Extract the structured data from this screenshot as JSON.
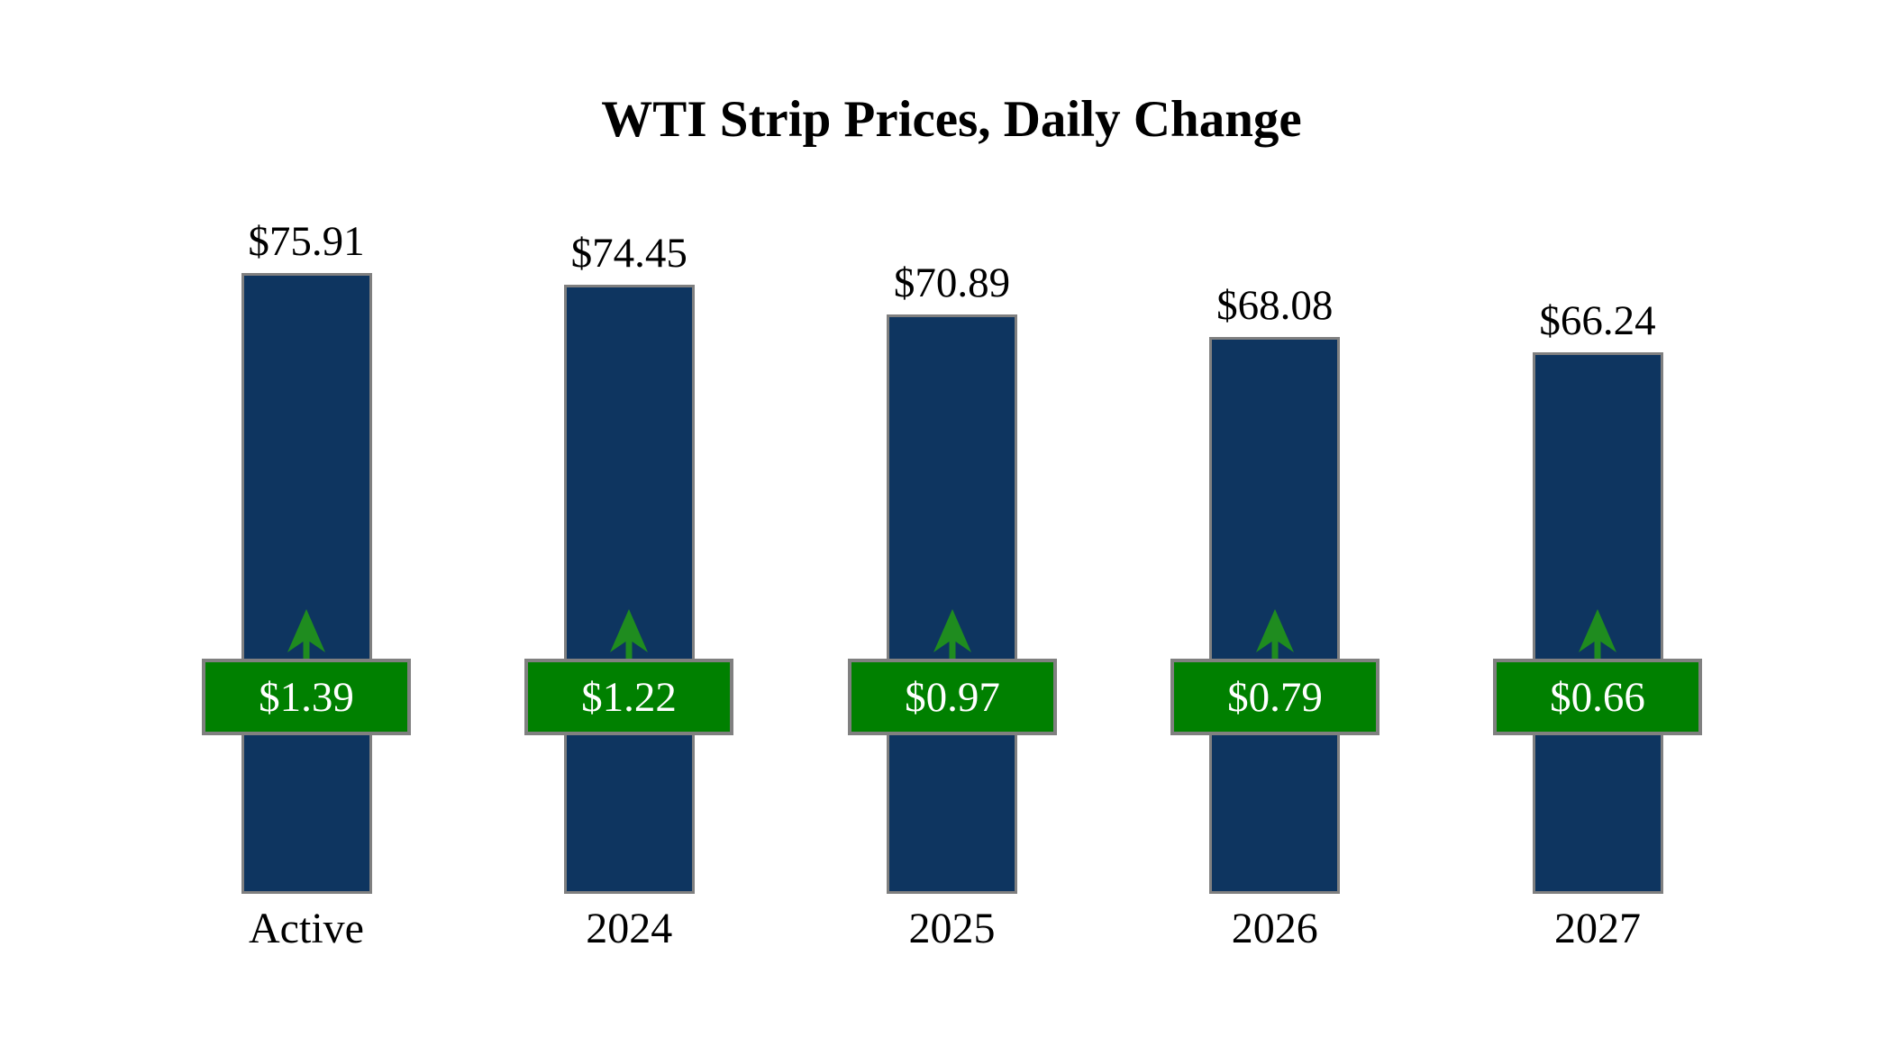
{
  "title": "WTI Strip Prices, Daily Change",
  "chart_data": {
    "type": "bar",
    "title": "WTI Strip Prices, Daily Change",
    "categories": [
      "Active",
      "2024",
      "2025",
      "2026",
      "2027"
    ],
    "series": [
      {
        "name": "strip_price",
        "values": [
          75.91,
          74.45,
          70.89,
          68.08,
          66.24
        ]
      },
      {
        "name": "daily_change",
        "values": [
          1.39,
          1.22,
          0.97,
          0.79,
          0.66
        ]
      }
    ],
    "value_labels": [
      "$75.91",
      "$74.45",
      "$70.89",
      "$68.08",
      "$66.24"
    ],
    "change_labels": [
      "$1.39",
      "$1.22",
      "$0.97",
      "$0.79",
      "$0.66"
    ],
    "change_direction": "up",
    "ylim": [
      0,
      75.91
    ],
    "grid": false,
    "legend": "none",
    "axes_shown": false
  },
  "icons": {
    "up_arrow": "up-arrow-icon"
  },
  "colors": {
    "background": "#ffffff",
    "bar_fill": "#0e3560",
    "bar_border": "#808080",
    "badge_fill": "#008000",
    "badge_border": "#808080",
    "badge_text": "#ffffff",
    "arrow_green": "#1f8c1f",
    "title_text": "#000000",
    "label_text": "#000000"
  }
}
